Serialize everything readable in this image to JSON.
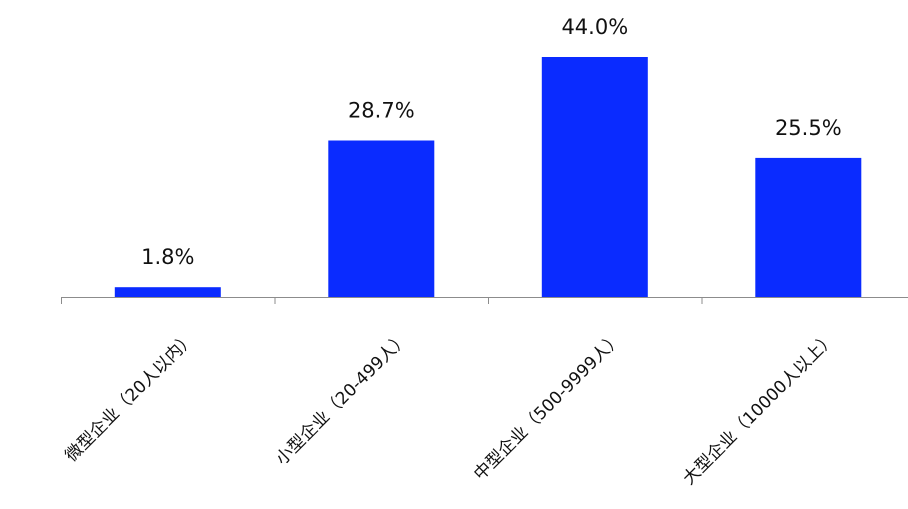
{
  "chart_data": {
    "type": "bar",
    "title": "",
    "xlabel": "",
    "ylabel": "",
    "categories": [
      "微型企业（20人以内）",
      "小型企业（20-499人）",
      "中型企业（500-9999人）",
      "大型企业（10000人以上）"
    ],
    "values": [
      1.8,
      28.7,
      44.0,
      25.5
    ],
    "value_labels": [
      "1.8%",
      "28.7%",
      "44.0%",
      "25.5%"
    ],
    "unit": "%",
    "ylim": [
      0,
      44.0
    ],
    "grid": false,
    "legend": "none",
    "colors": {
      "bar": "#0a2bff",
      "axis": "#8c8c8c",
      "text": "#111111"
    }
  }
}
